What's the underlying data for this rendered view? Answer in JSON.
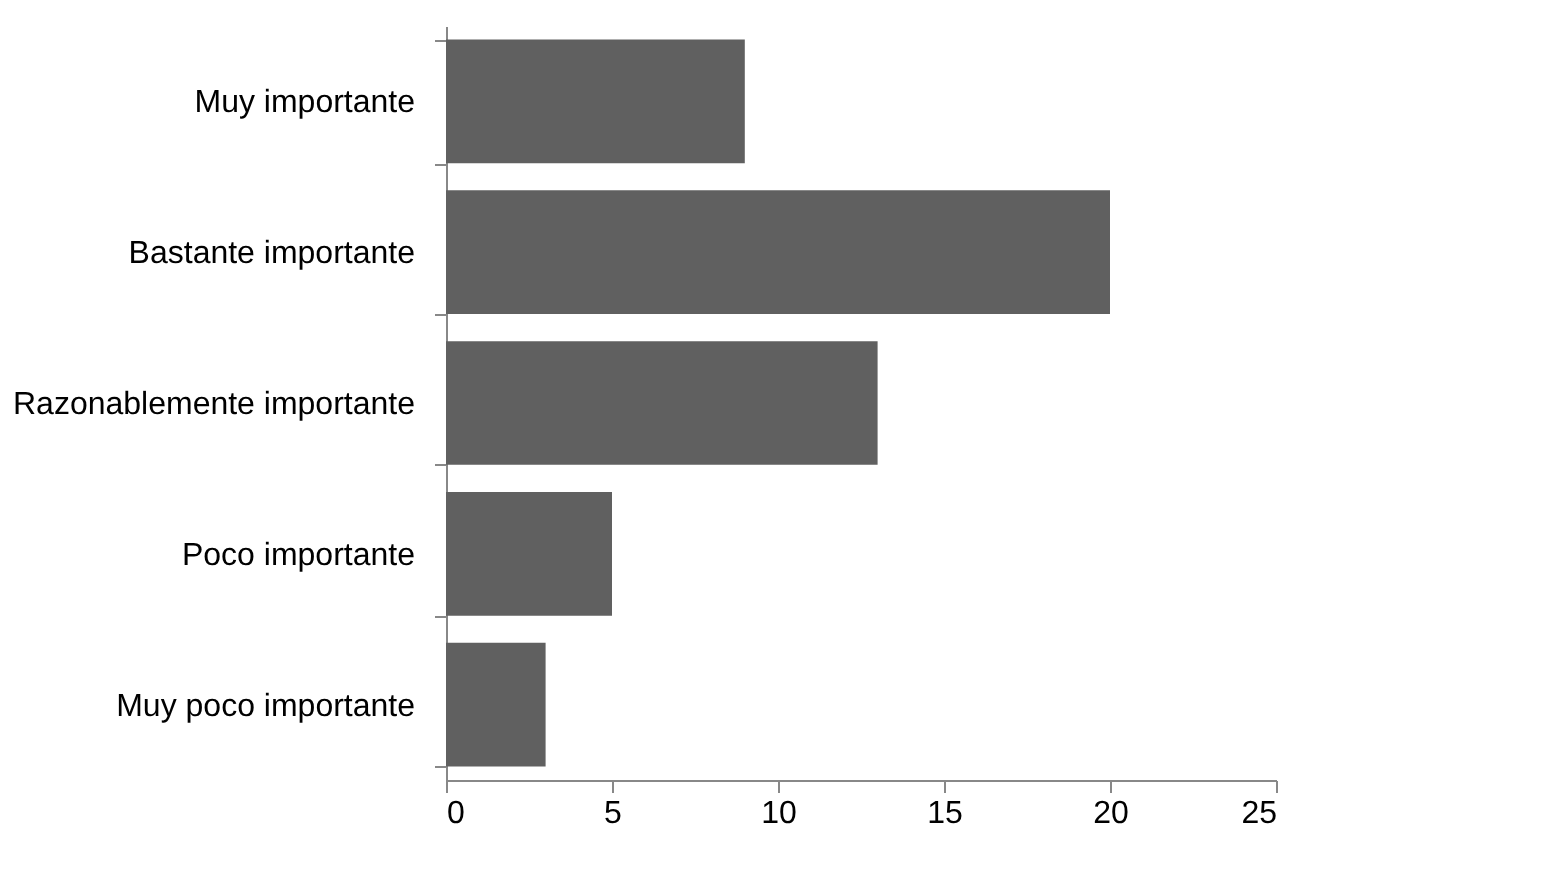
{
  "chart_data": {
    "type": "bar",
    "orientation": "horizontal",
    "categories": [
      "Muy importante",
      "Bastante importante",
      "Razonablemente importante",
      "Poco importante",
      "Muy poco importante"
    ],
    "values": [
      9,
      20,
      13,
      5,
      3
    ],
    "color": "#606060",
    "xlim": [
      0,
      25
    ],
    "xticks": [
      0,
      5,
      10,
      15,
      20,
      25
    ],
    "grid": false
  }
}
